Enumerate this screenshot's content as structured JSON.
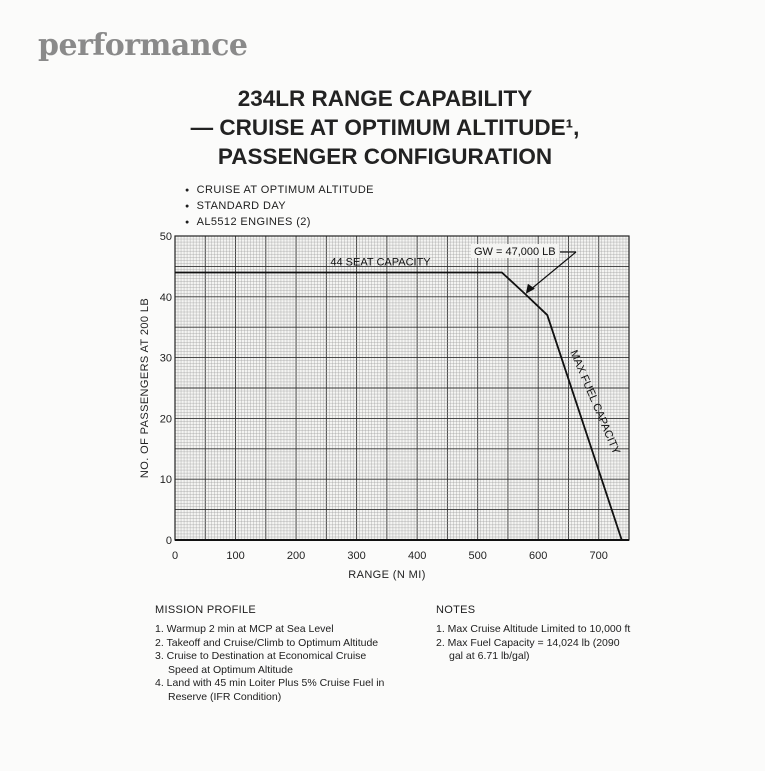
{
  "section": "performance",
  "title": [
    "234LR RANGE CAPABILITY",
    "— CRUISE AT OPTIMUM ALTITUDE¹,",
    "PASSENGER CONFIGURATION"
  ],
  "conditions": [
    "CRUISE AT OPTIMUM ALTITUDE",
    "STANDARD DAY",
    "AL5512 ENGINES (2)"
  ],
  "chart_data": {
    "type": "line",
    "title": "234LR RANGE CAPABILITY — CRUISE AT OPTIMUM ALTITUDE, PASSENGER CONFIGURATION",
    "xlabel": "RANGE (N MI)",
    "ylabel": "NO. OF PASSENGERS AT 200 LB",
    "xlim": [
      0,
      750
    ],
    "ylim": [
      0,
      50
    ],
    "xticks": [
      0,
      100,
      200,
      300,
      400,
      500,
      600,
      700
    ],
    "yticks": [
      0,
      10,
      20,
      30,
      40,
      50
    ],
    "grid": true,
    "series": [
      {
        "name": "Range capability",
        "x": [
          0,
          540,
          578,
          615,
          738
        ],
        "y": [
          44,
          44,
          40.5,
          37,
          0
        ]
      }
    ],
    "annotations": [
      {
        "text": "44 SEAT CAPACITY",
        "x": 260,
        "y": 45
      },
      {
        "text": "GW = 47,000 LB",
        "x": 578,
        "y": 40.5
      },
      {
        "text": "MAX FUEL CAPACITY",
        "x": 680,
        "y": 22
      }
    ]
  },
  "mission": {
    "heading": "MISSION PROFILE",
    "items": [
      "1. Warmup 2 min at MCP at Sea Level",
      "2. Takeoff and Cruise/Climb to Optimum Altitude",
      "3. Cruise to Destination at Economical Cruise Speed at Optimum Altitude",
      "4. Land with 45 min Loiter Plus 5% Cruise Fuel in Reserve (IFR Condition)"
    ]
  },
  "notes": {
    "heading": "NOTES",
    "items": [
      "1. Max Cruise Altitude Limited to 10,000 ft",
      "2. Max Fuel Capacity = 14,024 lb (2090 gal at 6.71 lb/gal)"
    ]
  }
}
